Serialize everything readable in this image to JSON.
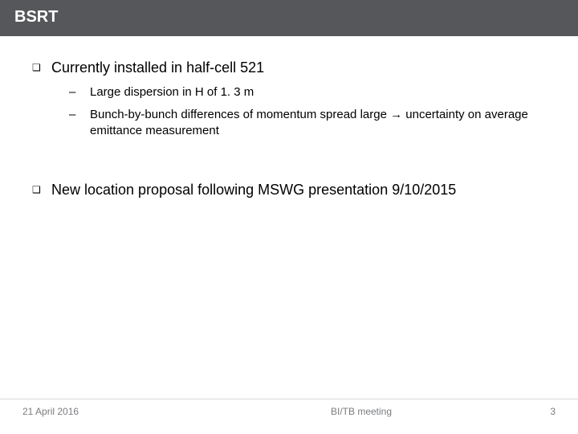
{
  "title": "BSRT",
  "bullets": [
    {
      "text": "Currently installed in half-cell 521",
      "sub": [
        "Large dispersion in H of 1. 3 m",
        "Bunch-by-bunch differences of momentum spread large → uncertainty on average emittance measurement"
      ]
    },
    {
      "text": "New location proposal following MSWG presentation 9/10/2015",
      "sub": []
    }
  ],
  "footer": {
    "date": "21 April 2016",
    "meeting": "BI/TB meeting",
    "page": "3"
  },
  "glyphs": {
    "square": "❑",
    "dash": "–"
  },
  "colors": {
    "titlebar_bg": "#55575a",
    "titlebar_fg": "#ffffff",
    "body_fg": "#000000",
    "footer_fg": "#7a7c7f",
    "footer_rule": "#d9dadb",
    "page_bg": "#ffffff"
  }
}
